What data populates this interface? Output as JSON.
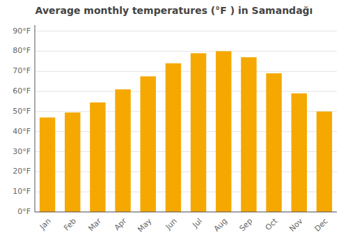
{
  "chart_data": {
    "type": "bar",
    "title": "Average monthly temperatures (°F ) in Samandağı",
    "categories": [
      "Jan",
      "Feb",
      "Mar",
      "Apr",
      "May",
      "Jun",
      "Jul",
      "Aug",
      "Sep",
      "Oct",
      "Nov",
      "Dec"
    ],
    "values": [
      47,
      49.5,
      54.5,
      61,
      67.5,
      74,
      79,
      80,
      77,
      69,
      59,
      50
    ],
    "color": "#F5A800",
    "ylim": [
      0,
      93
    ],
    "yticks": [
      {
        "value": 0,
        "label": "0°F"
      },
      {
        "value": 10,
        "label": "10°F"
      },
      {
        "value": 20,
        "label": "20°F"
      },
      {
        "value": 30,
        "label": "30°F"
      },
      {
        "value": 40,
        "label": "40°F"
      },
      {
        "value": 50,
        "label": "50°F"
      },
      {
        "value": 60,
        "label": "60°F"
      },
      {
        "value": 70,
        "label": "70°F"
      },
      {
        "value": 80,
        "label": "80°F"
      },
      {
        "value": 90,
        "label": "90°F"
      }
    ],
    "grid": true
  }
}
